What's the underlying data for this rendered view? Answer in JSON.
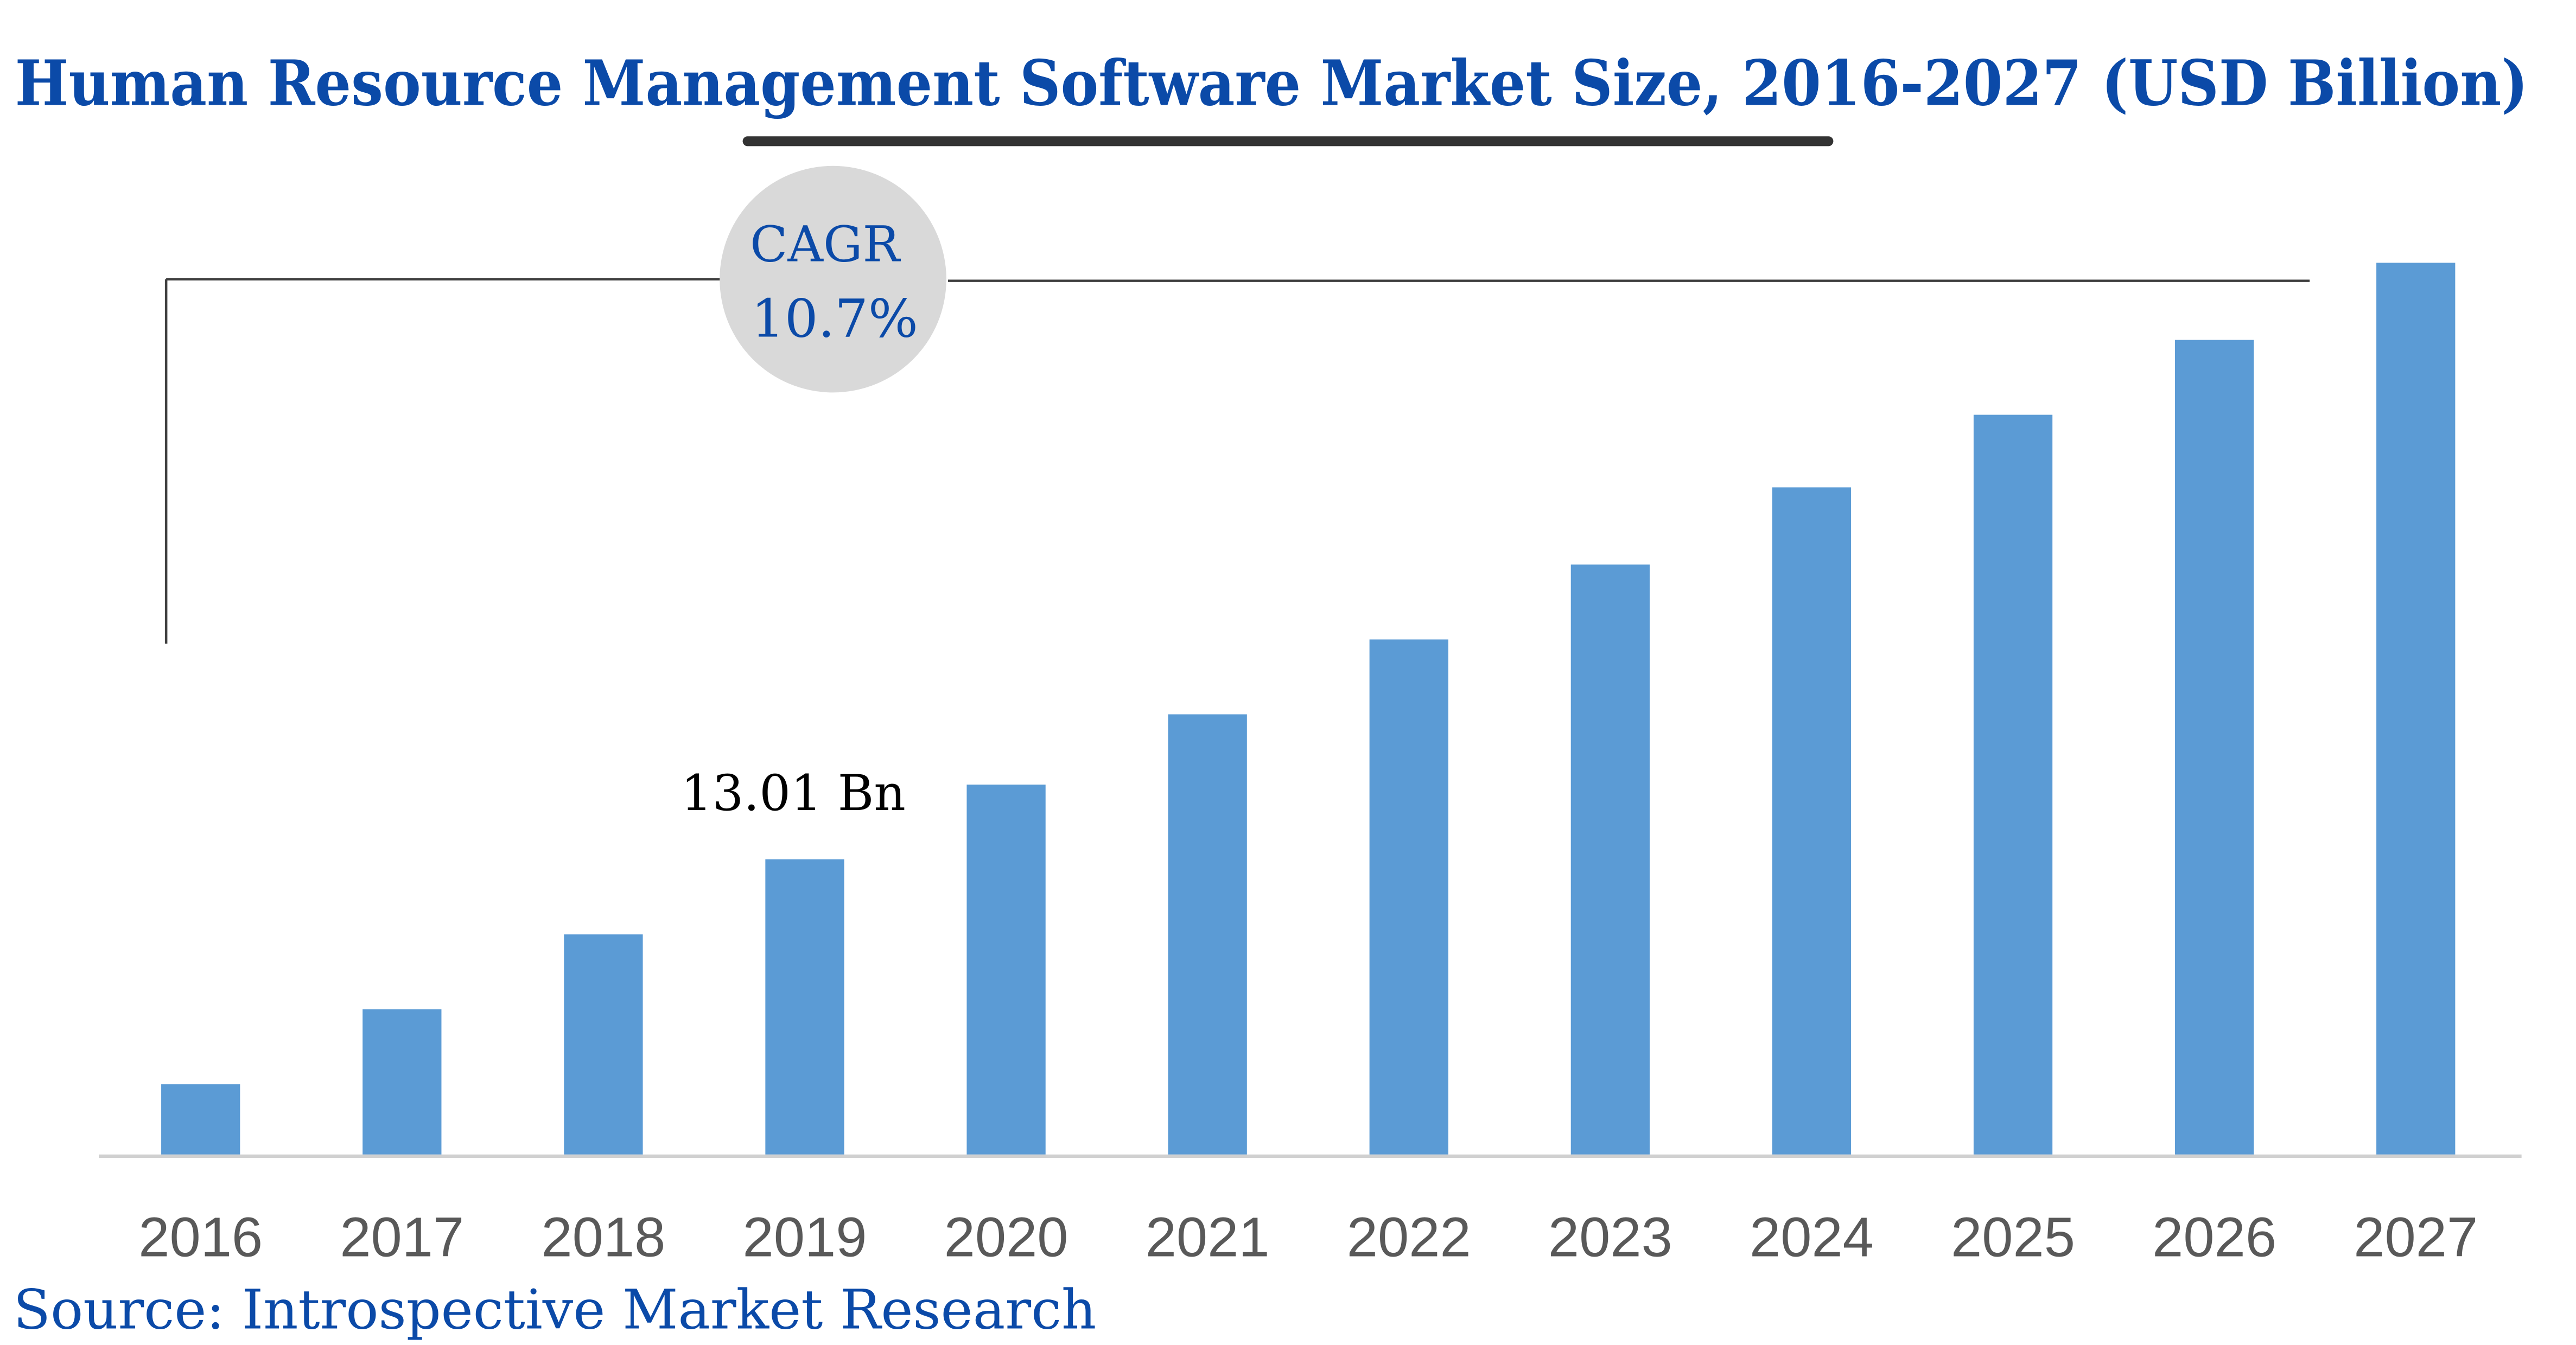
{
  "colors": {
    "title": "#0b4aa8",
    "bar": "#5b9bd5",
    "cagr_circle": "#d9d9d9",
    "tick_label": "#595959",
    "axis": "#d9d9d9",
    "bracket": "#404040"
  },
  "chart_data": {
    "type": "bar",
    "title": "Human Resource Management Software Market Size, 2016-2027 (USD Billion)",
    "xlabel": "",
    "ylabel": "",
    "categories": [
      "2016",
      "2017",
      "2018",
      "2019",
      "2020",
      "2021",
      "2022",
      "2023",
      "2024",
      "2025",
      "2026",
      "2027"
    ],
    "values": [
      3.1,
      6.4,
      9.7,
      13.01,
      16.3,
      19.4,
      22.7,
      26.0,
      29.4,
      32.6,
      35.9,
      39.3
    ],
    "ylim": [
      0,
      40
    ],
    "grid": false,
    "legend": "none",
    "data_labels": [
      {
        "category": "2019",
        "text": "13.01 Bn"
      }
    ],
    "annotation": {
      "label": "CAGR",
      "value": "10.7%"
    },
    "source": "Source: Introspective Market Research"
  }
}
